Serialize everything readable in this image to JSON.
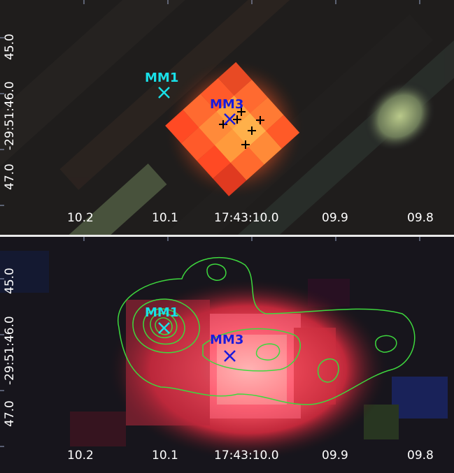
{
  "panels": [
    {
      "id": "top",
      "x_tick_labels": [
        "10.2",
        "10.1",
        "17:43:10.0",
        "09.9",
        "09.8"
      ],
      "y_tick_labels": [
        "45.0",
        "-29:51:46.0",
        "47.0"
      ],
      "sources": [
        {
          "name": "MM1",
          "color": "#19e0e8"
        },
        {
          "name": "MM3",
          "color": "#1a1adc"
        }
      ]
    },
    {
      "id": "bottom",
      "x_tick_labels": [
        "10.2",
        "10.1",
        "17:43:10.0",
        "09.9",
        "09.8"
      ],
      "y_tick_labels": [
        "45.0",
        "-29:51:46.0",
        "47.0"
      ],
      "sources": [
        {
          "name": "MM1",
          "color": "#19e0e8"
        },
        {
          "name": "MM3",
          "color": "#1a1adc"
        }
      ],
      "contour_color": "#3ed83e"
    }
  ]
}
